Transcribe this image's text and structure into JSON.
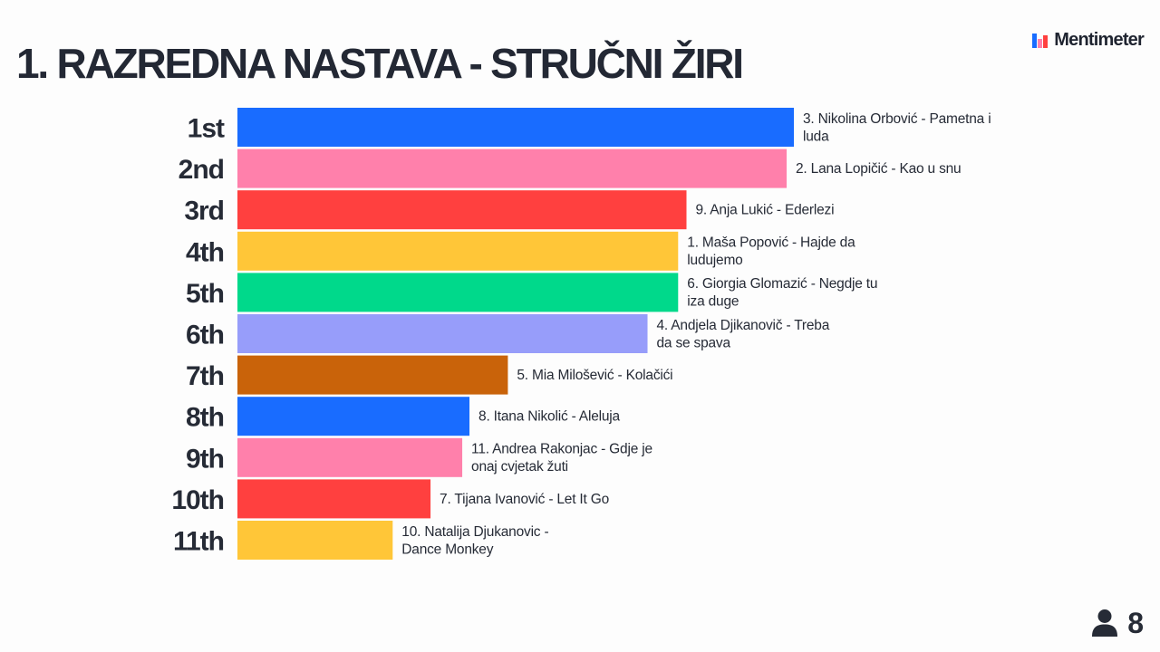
{
  "header": {
    "title": "1. RAZREDNA NASTAVA - STRUČNI ŽIRI",
    "brand": "Mentimeter",
    "brand_icon": "mentimeter-logo-icon"
  },
  "footer": {
    "participant_icon": "user-icon",
    "participant_count": "8"
  },
  "chart_data": {
    "type": "bar",
    "orientation": "horizontal",
    "title": "1. RAZREDNA NASTAVA - STRUČNI ŽIRI",
    "categories": [
      "1st",
      "2nd",
      "3rd",
      "4th",
      "5th",
      "6th",
      "7th",
      "8th",
      "9th",
      "10th",
      "11th"
    ],
    "labels": [
      [
        "3. Nikolina Orbović  - Pametna i",
        "luda"
      ],
      [
        "2. Lana Lopičić - Kao u snu"
      ],
      [
        "9. Anja Lukić - Ederlezi"
      ],
      [
        "1. Maša Popović - Hajde da",
        "ludujemo"
      ],
      [
        "6. Giorgia Glomazić - Negdje tu",
        "iza duge"
      ],
      [
        "4. Andjela Djikanovič - Treba",
        "da se spava"
      ],
      [
        "5. Mia Milošević - Kolačići"
      ],
      [
        "8. Itana Nikolić - Aleluja"
      ],
      [
        "11. Andrea Rakonjac - Gdje je",
        "onaj cvjetak žuti"
      ],
      [
        "7. Tijana Ivanović - Let It Go"
      ],
      [
        "10. Natalija Djukanovic -",
        "Dance Monkey"
      ]
    ],
    "values": [
      100,
      98.7,
      80.7,
      79.2,
      79.2,
      73.7,
      48.6,
      41.7,
      40.4,
      34.7,
      27.9
    ],
    "colors": [
      "#196cff",
      "#ff80ab",
      "#ff403f",
      "#ffc638",
      "#00d98b",
      "#979dfa",
      "#c9630a",
      "#196cff",
      "#ff80ab",
      "#ff403f",
      "#ffc638"
    ],
    "xlim": [
      0,
      100
    ],
    "grid": false,
    "legend": "none"
  }
}
